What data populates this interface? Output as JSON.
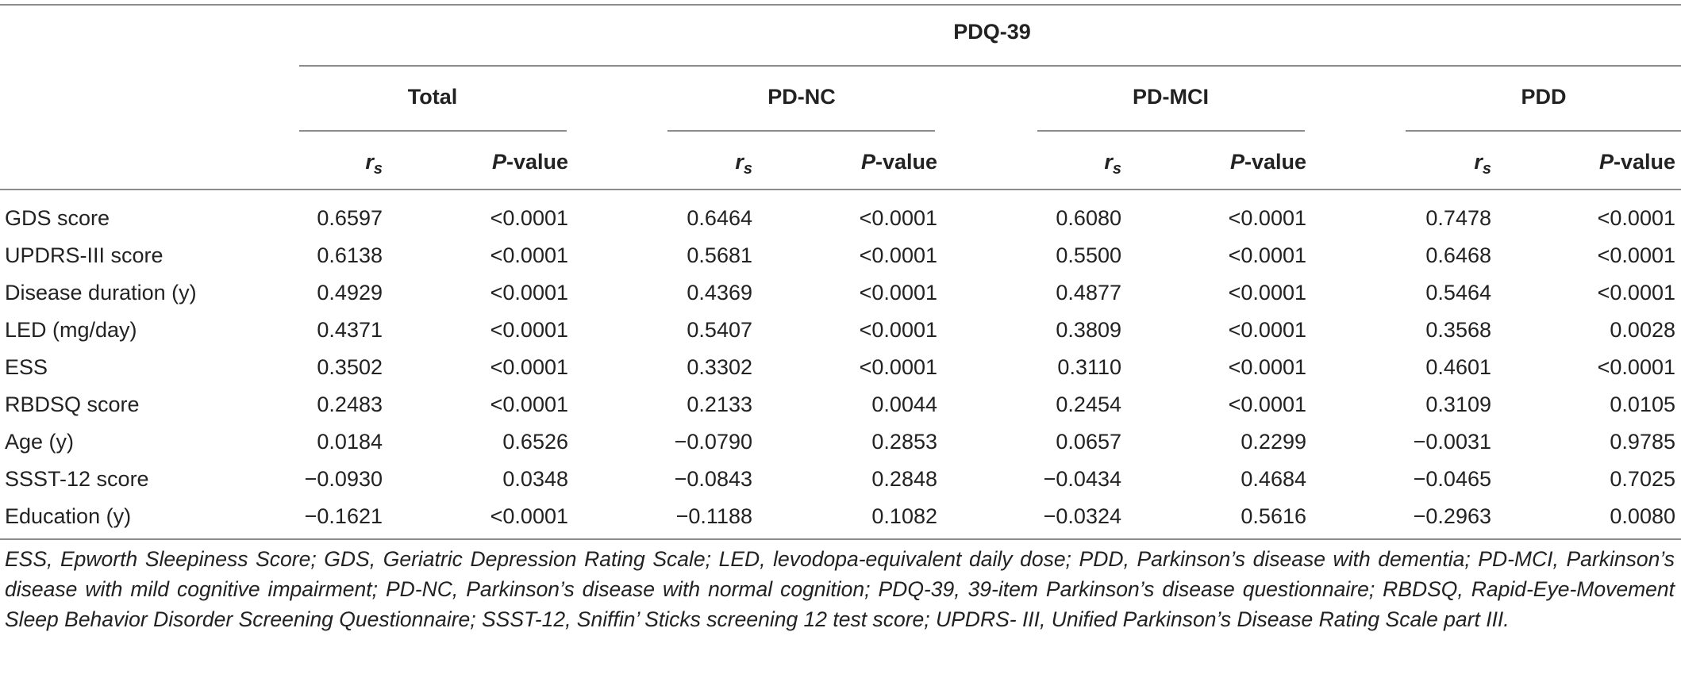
{
  "table": {
    "group_header": "PDQ-39",
    "column_groups": [
      "Total",
      "PD-NC",
      "PD-MCI",
      "PDD"
    ],
    "subcolumns": {
      "rs_label": "r",
      "rs_subscript": "s",
      "p_italic": "P",
      "p_suffix": "-value"
    },
    "rows": [
      {
        "label": "GDS score",
        "values": [
          "0.6597",
          "<0.0001",
          "0.6464",
          "<0.0001",
          "0.6080",
          "<0.0001",
          "0.7478",
          "<0.0001"
        ]
      },
      {
        "label": "UPDRS-III score",
        "values": [
          "0.6138",
          "<0.0001",
          "0.5681",
          "<0.0001",
          "0.5500",
          "<0.0001",
          "0.6468",
          "<0.0001"
        ]
      },
      {
        "label": "Disease duration (y)",
        "values": [
          "0.4929",
          "<0.0001",
          "0.4369",
          "<0.0001",
          "0.4877",
          "<0.0001",
          "0.5464",
          "<0.0001"
        ]
      },
      {
        "label": "LED (mg/day)",
        "values": [
          "0.4371",
          "<0.0001",
          "0.5407",
          "<0.0001",
          "0.3809",
          "<0.0001",
          "0.3568",
          "0.0028"
        ]
      },
      {
        "label": "ESS",
        "values": [
          "0.3502",
          "<0.0001",
          "0.3302",
          "<0.0001",
          "0.3110",
          "<0.0001",
          "0.4601",
          "<0.0001"
        ]
      },
      {
        "label": "RBDSQ score",
        "values": [
          "0.2483",
          "<0.0001",
          "0.2133",
          "0.0044",
          "0.2454",
          "<0.0001",
          "0.3109",
          "0.0105"
        ]
      },
      {
        "label": "Age (y)",
        "values": [
          "0.0184",
          "0.6526",
          "−0.0790",
          "0.2853",
          "0.0657",
          "0.2299",
          "−0.0031",
          "0.9785"
        ]
      },
      {
        "label": "SSST-12 score",
        "values": [
          "−0.0930",
          "0.0348",
          "−0.0843",
          "0.2848",
          "−0.0434",
          "0.4684",
          "−0.0465",
          "0.7025"
        ]
      },
      {
        "label": "Education (y)",
        "values": [
          "−0.1621",
          "<0.0001",
          "−0.1188",
          "0.1082",
          "−0.0324",
          "0.5616",
          "−0.2963",
          "0.0080"
        ]
      }
    ],
    "footnote": "ESS, Epworth Sleepiness Score; GDS, Geriatric Depression Rating Scale; LED, levodopa-equivalent daily dose; PDD, Parkinson’s disease with dementia; PD-MCI, Parkinson’s disease with mild cognitive impairment; PD-NC, Parkinson’s disease with normal cognition; PDQ-39, 39-item Parkinson’s disease questionnaire; RBDSQ, Rapid-Eye-Movement Sleep Behavior Disorder Screening Questionnaire; SSST-12, Sniffin’ Sticks screening 12 test score; UPDRS- III, Unified Parkinson’s Disease Rating Scale part III."
  }
}
